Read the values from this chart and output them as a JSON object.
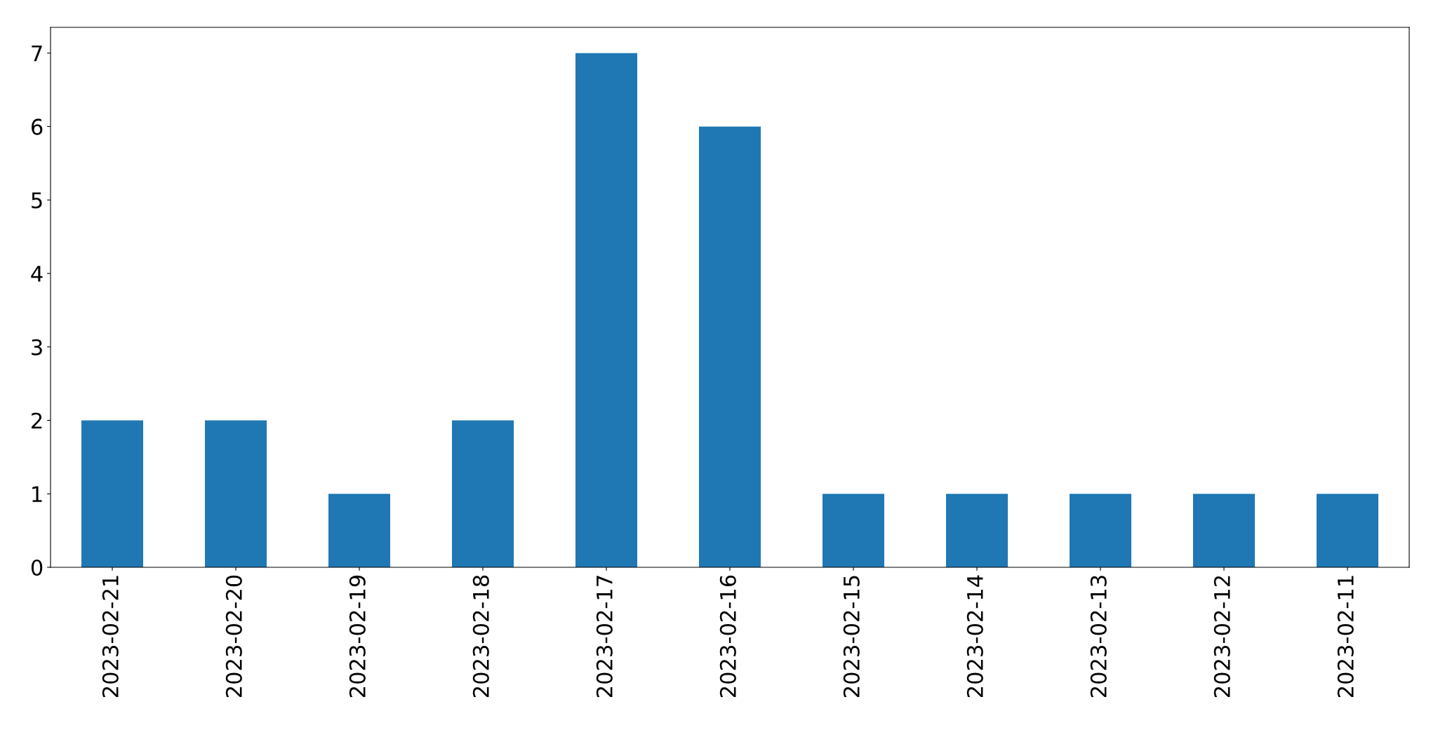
{
  "chart_data": {
    "type": "bar",
    "categories": [
      "2023-02-21",
      "2023-02-20",
      "2023-02-19",
      "2023-02-18",
      "2023-02-17",
      "2023-02-16",
      "2023-02-15",
      "2023-02-14",
      "2023-02-13",
      "2023-02-12",
      "2023-02-11"
    ],
    "values": [
      2,
      2,
      1,
      2,
      7,
      6,
      1,
      1,
      1,
      1,
      1
    ],
    "color": "#1f77b4",
    "ylim": [
      0,
      7.35
    ],
    "yticks": [
      0,
      1,
      2,
      3,
      4,
      5,
      6,
      7
    ],
    "grid": false,
    "legend": false
  }
}
